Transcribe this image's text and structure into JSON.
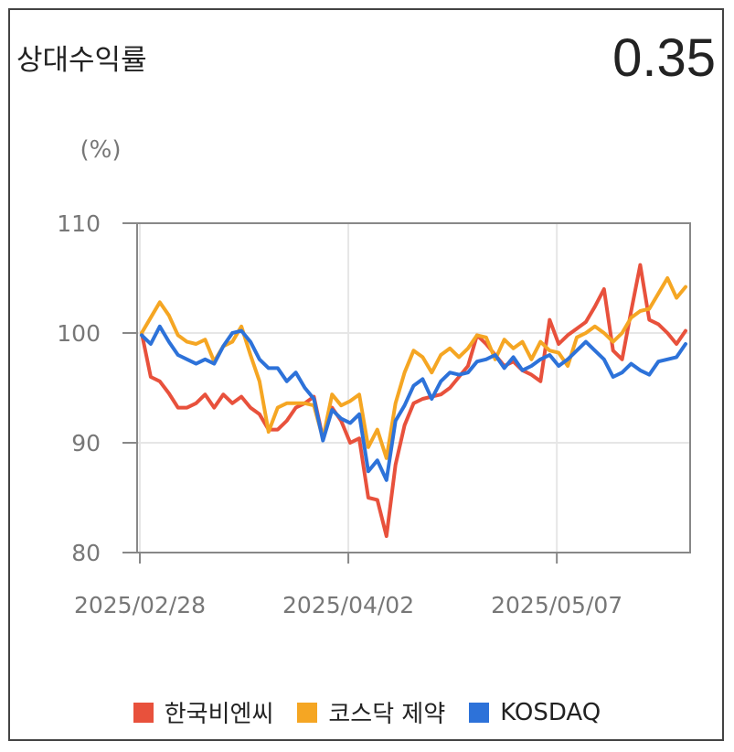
{
  "header": {
    "title": "상대수익률",
    "value": "0.35"
  },
  "colors": {
    "grid": "#e6e6e6",
    "axis": "#888888",
    "text": "#777777"
  },
  "chart_data": {
    "type": "line",
    "unit_label": "(%)",
    "ylim": [
      80,
      110
    ],
    "yticks": [
      80,
      90,
      100,
      110
    ],
    "xtick_labels": [
      "2025/02/28",
      "2025/04/02",
      "2025/05/07"
    ],
    "xtick_index": [
      0,
      23,
      46
    ],
    "grid": true,
    "legend_position": "bottom",
    "series": [
      {
        "name": "한국비엔씨",
        "color": "#e8513c",
        "values": [
          100,
          96,
          95.6,
          94.5,
          93.2,
          93.2,
          93.6,
          94.4,
          93.2,
          94.4,
          93.6,
          94.2,
          93.2,
          92.6,
          91.2,
          91.2,
          92,
          93.2,
          93.6,
          94.2,
          90.4,
          93.2,
          92,
          90,
          90.4,
          85,
          84.8,
          81.5,
          88,
          91.6,
          93.6,
          94,
          94.2,
          94.4,
          95,
          96,
          97,
          99.8,
          99,
          98,
          97,
          97.4,
          96.6,
          96.2,
          95.6,
          101.2,
          99,
          99.8,
          100.4,
          101,
          102.4,
          104,
          98.4,
          97.6,
          102,
          106.2,
          101.2,
          100.8,
          100,
          99,
          100.2
        ]
      },
      {
        "name": "코스닥 제약",
        "color": "#f5a623",
        "values": [
          100,
          101.4,
          102.8,
          101.6,
          99.8,
          99.2,
          99,
          99.4,
          97.4,
          98.8,
          99.2,
          100.6,
          98,
          95.6,
          91,
          93.2,
          93.6,
          93.6,
          93.6,
          93.4,
          90.4,
          94.4,
          93.4,
          93.8,
          94.4,
          89.6,
          91.2,
          88.6,
          93.6,
          96.4,
          98.4,
          97.8,
          96.4,
          98,
          98.6,
          97.8,
          98.6,
          99.8,
          99.6,
          97.6,
          99.4,
          98.6,
          99.2,
          97.6,
          99.2,
          98.4,
          98.2,
          97,
          99.6,
          100,
          100.6,
          100,
          99.2,
          100,
          101.4,
          102,
          102.2,
          103.6,
          105,
          103.2,
          104.2
        ]
      },
      {
        "name": "KOSDAQ",
        "color": "#2d72d9",
        "values": [
          99.8,
          99,
          100.6,
          99.2,
          98,
          97.6,
          97.2,
          97.6,
          97.2,
          98.8,
          100,
          100.2,
          99.2,
          97.6,
          96.8,
          96.8,
          95.6,
          96.4,
          95,
          94,
          90.2,
          93,
          92.2,
          91.8,
          92.6,
          87.4,
          88.4,
          86.6,
          92,
          93.4,
          95.2,
          95.8,
          94,
          95.6,
          96.4,
          96.2,
          96.4,
          97.4,
          97.6,
          98,
          96.8,
          97.8,
          96.6,
          97,
          97.6,
          98,
          97,
          97.6,
          98.4,
          99.2,
          98.4,
          97.6,
          96,
          96.4,
          97.2,
          96.6,
          96.2,
          97.4,
          97.6,
          97.8,
          99
        ]
      }
    ]
  }
}
